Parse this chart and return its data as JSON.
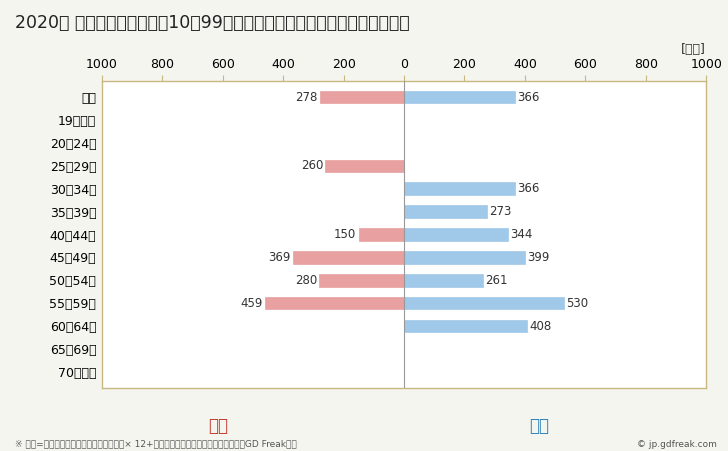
{
  "title": "2020年 民間企業（従業者数10～99人）フルタイム労働者の男女別平均年収",
  "unit_label": "[万円]",
  "categories": [
    "全体",
    "19歳以下",
    "20～24歳",
    "25～29歳",
    "30～34歳",
    "35～39歳",
    "40～44歳",
    "45～49歳",
    "50～54歳",
    "55～59歳",
    "60～64歳",
    "65～69歳",
    "70歳以上"
  ],
  "female_values": [
    278,
    0,
    0,
    260,
    0,
    0,
    150,
    369,
    280,
    459,
    0,
    0,
    0
  ],
  "male_values": [
    366,
    0,
    0,
    0,
    366,
    273,
    344,
    399,
    261,
    530,
    408,
    0,
    0
  ],
  "female_color": "#e8a0a0",
  "male_color": "#a0c8e8",
  "female_label": "女性",
  "male_label": "男性",
  "female_label_color": "#c0392b",
  "male_label_color": "#2980b9",
  "xlim": [
    -1000,
    1000
  ],
  "xticks": [
    -1000,
    -800,
    -600,
    -400,
    -200,
    0,
    200,
    400,
    600,
    800,
    1000
  ],
  "xtick_labels": [
    "1000",
    "800",
    "600",
    "400",
    "200",
    "0",
    "200",
    "400",
    "600",
    "800",
    "1000"
  ],
  "footnote": "※ 年収=「きまって支給する現金給与額」× 12+「年間賞与その他特別給与額」としてGD Freak推計",
  "copyright": "© jp.gdfreak.com",
  "background_color": "#f5f5f0",
  "plot_background_color": "#ffffff",
  "border_color": "#c8b880",
  "title_fontsize": 12.5,
  "label_fontsize": 9,
  "tick_fontsize": 9,
  "annotation_fontsize": 8.5,
  "bar_height": 0.55
}
